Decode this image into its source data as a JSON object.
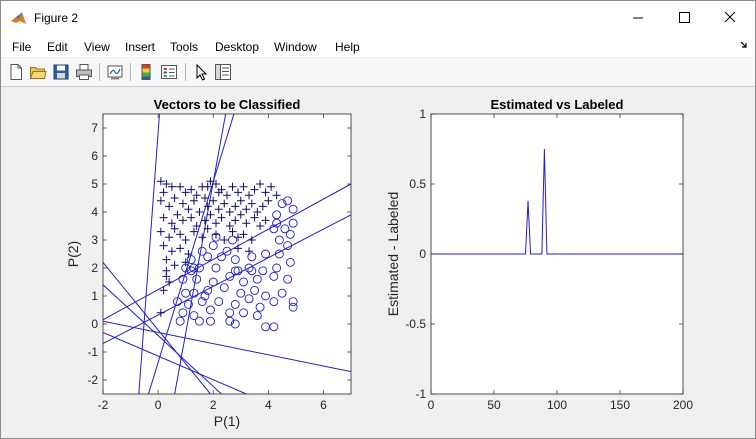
{
  "window": {
    "title": "Figure 2",
    "controls": [
      "minimize",
      "maximize",
      "close"
    ]
  },
  "menubar": {
    "items": [
      "File",
      "Edit",
      "View",
      "Insert",
      "Tools",
      "Desktop",
      "Window",
      "Help"
    ],
    "overflow_icon": "dock-arrow-icon"
  },
  "toolbar": {
    "icons": [
      "new-figure-icon",
      "open-file-icon",
      "save-icon",
      "print-icon",
      "link-plot-icon",
      "insert-colorbar-icon",
      "insert-legend-icon",
      "pointer-icon",
      "property-inspector-icon"
    ]
  },
  "colors": {
    "marker": "#1f1fc8",
    "line": "#1f1fc8",
    "axes_bg": "#ffffff",
    "figure_bg": "#f0f0f0"
  },
  "chart_data": [
    {
      "type": "scatter",
      "title": "Vectors to be Classified",
      "xlabel": "P(1)",
      "ylabel": "P(2)",
      "xlim": [
        -2,
        7
      ],
      "ylim": [
        -2.5,
        7.5
      ],
      "xticks": [
        -2,
        0,
        2,
        4,
        6
      ],
      "yticks": [
        -2,
        -1,
        0,
        1,
        2,
        3,
        4,
        5,
        6,
        7
      ],
      "grid": false,
      "legend": "none",
      "series": [
        {
          "marker": "plus",
          "points": [
            [
              0.1,
              5.1
            ],
            [
              0.3,
              5.0
            ],
            [
              0.5,
              4.9
            ],
            [
              0.2,
              4.7
            ],
            [
              0.8,
              4.9
            ],
            [
              1.0,
              4.7
            ],
            [
              1.2,
              4.8
            ],
            [
              1.4,
              4.6
            ],
            [
              1.6,
              4.9
            ],
            [
              1.7,
              4.5
            ],
            [
              1.9,
              5.1
            ],
            [
              2.1,
              5.0
            ],
            [
              2.3,
              4.8
            ],
            [
              2.5,
              4.6
            ],
            [
              2.7,
              4.9
            ],
            [
              2.9,
              4.7
            ],
            [
              3.1,
              4.9
            ],
            [
              3.3,
              4.6
            ],
            [
              3.5,
              4.8
            ],
            [
              3.7,
              5.0
            ],
            [
              3.9,
              4.7
            ],
            [
              4.1,
              4.9
            ],
            [
              4.3,
              4.6
            ],
            [
              0.1,
              4.4
            ],
            [
              0.4,
              4.2
            ],
            [
              0.6,
              4.5
            ],
            [
              0.9,
              4.3
            ],
            [
              1.1,
              4.1
            ],
            [
              1.3,
              4.4
            ],
            [
              1.5,
              4.0
            ],
            [
              1.8,
              4.2
            ],
            [
              2.0,
              4.4
            ],
            [
              2.2,
              4.1
            ],
            [
              2.4,
              4.3
            ],
            [
              2.6,
              4.0
            ],
            [
              2.8,
              4.2
            ],
            [
              3.0,
              4.4
            ],
            [
              3.2,
              4.1
            ],
            [
              3.4,
              4.3
            ],
            [
              3.6,
              4.0
            ],
            [
              3.8,
              4.2
            ],
            [
              4.0,
              4.4
            ],
            [
              0.2,
              3.8
            ],
            [
              0.5,
              3.6
            ],
            [
              0.7,
              3.9
            ],
            [
              0.9,
              3.7
            ],
            [
              1.2,
              3.8
            ],
            [
              1.4,
              3.5
            ],
            [
              1.7,
              3.7
            ],
            [
              1.9,
              3.9
            ],
            [
              2.1,
              3.6
            ],
            [
              2.3,
              3.8
            ],
            [
              2.6,
              3.5
            ],
            [
              2.8,
              3.7
            ],
            [
              3.0,
              3.9
            ],
            [
              3.2,
              3.6
            ],
            [
              3.5,
              3.8
            ],
            [
              3.7,
              3.5
            ],
            [
              3.9,
              3.7
            ],
            [
              0.1,
              3.3
            ],
            [
              0.4,
              3.1
            ],
            [
              0.6,
              3.4
            ],
            [
              0.8,
              3.2
            ],
            [
              1.0,
              3.0
            ],
            [
              1.3,
              3.3
            ],
            [
              1.6,
              3.1
            ],
            [
              1.8,
              3.4
            ],
            [
              2.1,
              3.2
            ],
            [
              2.4,
              3.0
            ],
            [
              2.7,
              3.3
            ],
            [
              2.9,
              3.1
            ],
            [
              3.1,
              3.2
            ],
            [
              3.4,
              3.0
            ],
            [
              0.2,
              2.8
            ],
            [
              0.5,
              2.6
            ],
            [
              0.8,
              2.7
            ],
            [
              1.1,
              2.5
            ],
            [
              2.9,
              2.7
            ],
            [
              3.3,
              2.6
            ],
            [
              0.3,
              2.3
            ],
            [
              0.6,
              2.1
            ],
            [
              1.0,
              2.2
            ],
            [
              0.3,
              1.7
            ],
            [
              0.2,
              1.2
            ],
            [
              0.4,
              1.5
            ],
            [
              0.1,
              0.4
            ],
            [
              0.3,
              1.9
            ],
            [
              1.8,
              4.9
            ],
            [
              2.2,
              4.7
            ]
          ]
        },
        {
          "marker": "circle",
          "points": [
            [
              4.5,
              4.3
            ],
            [
              4.7,
              4.4
            ],
            [
              4.9,
              4.1
            ],
            [
              4.3,
              3.6
            ],
            [
              4.6,
              3.4
            ],
            [
              4.8,
              3.2
            ],
            [
              4.4,
              3.0
            ],
            [
              4.7,
              2.8
            ],
            [
              4.2,
              3.4
            ],
            [
              4.9,
              3.6
            ],
            [
              1.6,
              2.6
            ],
            [
              2.0,
              2.8
            ],
            [
              2.5,
              2.6
            ],
            [
              1.2,
              2.3
            ],
            [
              1.8,
              2.4
            ],
            [
              2.3,
              2.4
            ],
            [
              2.8,
              2.3
            ],
            [
              3.4,
              2.4
            ],
            [
              3.9,
              2.5
            ],
            [
              4.4,
              2.5
            ],
            [
              1.0,
              2.0
            ],
            [
              1.5,
              2.0
            ],
            [
              2.1,
              2.0
            ],
            [
              2.8,
              1.9
            ],
            [
              3.3,
              2.0
            ],
            [
              3.8,
              1.9
            ],
            [
              4.3,
              2.0
            ],
            [
              4.8,
              2.2
            ],
            [
              0.9,
              1.6
            ],
            [
              1.4,
              1.6
            ],
            [
              2.0,
              1.5
            ],
            [
              2.6,
              1.7
            ],
            [
              3.1,
              1.5
            ],
            [
              3.6,
              1.6
            ],
            [
              4.2,
              1.7
            ],
            [
              4.7,
              1.6
            ],
            [
              1.0,
              1.1
            ],
            [
              1.3,
              1.1
            ],
            [
              1.8,
              1.2
            ],
            [
              2.4,
              1.3
            ],
            [
              3.0,
              1.1
            ],
            [
              3.5,
              1.2
            ],
            [
              3.9,
              1.0
            ],
            [
              4.5,
              1.1
            ],
            [
              0.7,
              0.8
            ],
            [
              1.1,
              0.7
            ],
            [
              1.6,
              0.8
            ],
            [
              2.2,
              0.8
            ],
            [
              2.8,
              0.7
            ],
            [
              3.3,
              0.9
            ],
            [
              3.7,
              0.6
            ],
            [
              4.2,
              0.8
            ],
            [
              4.9,
              0.8
            ],
            [
              4.9,
              0.6
            ],
            [
              0.9,
              0.4
            ],
            [
              1.3,
              0.3
            ],
            [
              1.9,
              0.5
            ],
            [
              2.6,
              0.4
            ],
            [
              3.1,
              0.4
            ],
            [
              3.6,
              0.3
            ],
            [
              0.8,
              0.1
            ],
            [
              1.5,
              0.1
            ],
            [
              1.9,
              0.1
            ],
            [
              2.8,
              0.0
            ],
            [
              3.9,
              -0.1
            ],
            [
              4.2,
              -0.1
            ],
            [
              2.1,
              3.1
            ],
            [
              2.7,
              3.0
            ],
            [
              1.2,
              1.9
            ],
            [
              1.3,
              2.0
            ],
            [
              3.4,
              1.9
            ],
            [
              4.3,
              3.9
            ],
            [
              2.6,
              0.1
            ],
            [
              1.7,
              1.0
            ],
            [
              2.9,
              1.9
            ]
          ]
        }
      ],
      "lines": [
        [
          [
            -0.7,
            -2.5
          ],
          [
            0.05,
            7.5
          ]
        ],
        [
          [
            0.6,
            -2.5
          ],
          [
            2.45,
            7.5
          ]
        ],
        [
          [
            -0.35,
            -2.5
          ],
          [
            2.75,
            7.5
          ]
        ],
        [
          [
            -2.0,
            0.15
          ],
          [
            7.0,
            5.0
          ]
        ],
        [
          [
            -2.0,
            -0.7
          ],
          [
            7.0,
            3.9
          ]
        ],
        [
          [
            -2.0,
            0.1
          ],
          [
            7.0,
            -1.7
          ]
        ],
        [
          [
            -2.0,
            -0.3
          ],
          [
            3.2,
            -2.5
          ]
        ],
        [
          [
            -2.0,
            2.2
          ],
          [
            1.9,
            -2.5
          ]
        ],
        [
          [
            -2.0,
            1.4
          ],
          [
            2.3,
            -2.5
          ]
        ]
      ]
    },
    {
      "type": "line",
      "title": "Estimated vs Labeled",
      "xlabel": "",
      "ylabel": "Estimated - Labeled",
      "xlim": [
        0,
        200
      ],
      "ylim": [
        -1,
        1
      ],
      "xticks": [
        0,
        50,
        100,
        150,
        200
      ],
      "yticks": [
        -1,
        -0.5,
        0,
        0.5,
        1
      ],
      "yticklabels": [
        "-1",
        "-0.5",
        "0",
        "0.5",
        "1"
      ],
      "grid": false,
      "legend": "none",
      "x": [
        0,
        75,
        77,
        79,
        88,
        90,
        92,
        200
      ],
      "values": [
        0,
        0,
        0.38,
        0,
        0,
        0.75,
        0,
        0
      ]
    }
  ]
}
